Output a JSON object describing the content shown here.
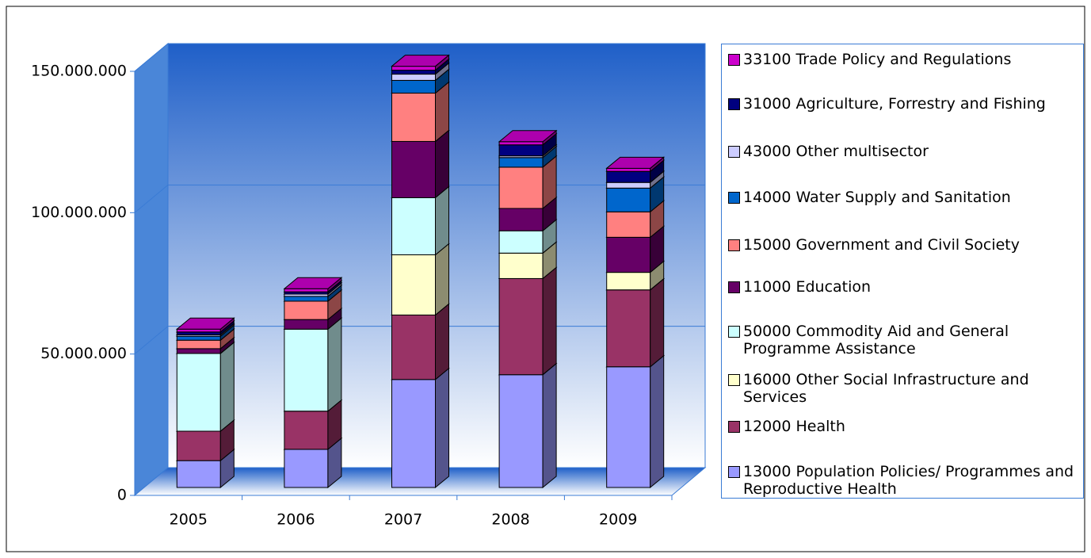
{
  "chart_data": {
    "type": "bar3d_stacked",
    "categories": [
      "2005",
      "2006",
      "2007",
      "2008",
      "2009"
    ],
    "series": [
      {
        "name": "13000 Population Policies/ Programmes and Reproductive Health",
        "color": "#9999ff",
        "values": [
          9500000,
          13500000,
          38200000,
          39900000,
          42700000
        ]
      },
      {
        "name": "12000 Health",
        "color": "#993366",
        "values": [
          10400000,
          13500000,
          22800000,
          34000000,
          27200000
        ]
      },
      {
        "name": "16000 Other Social Infrastructure and Services",
        "color": "#ffffcc",
        "values": [
          0,
          0,
          21300000,
          9000000,
          6200000
        ]
      },
      {
        "name": "50000 Commodity Aid and General Programme Assistance",
        "color": "#ccffff",
        "values": [
          27500000,
          29000000,
          20200000,
          7900000,
          0
        ]
      },
      {
        "name": "11000 Education",
        "color": "#660066",
        "values": [
          1700000,
          3400000,
          19900000,
          7900000,
          12400000
        ]
      },
      {
        "name": "15000 Government and Civil Society",
        "color": "#ff8080",
        "values": [
          3000000,
          6500000,
          17100000,
          14600000,
          9000000
        ]
      },
      {
        "name": "14000 Water Supply and Sanitation",
        "color": "#0066cc",
        "values": [
          1400000,
          1700000,
          4500000,
          3400000,
          8400000
        ]
      },
      {
        "name": "43000 Other multisector",
        "color": "#ccccff",
        "values": [
          500000,
          800000,
          2200000,
          600000,
          2000000
        ]
      },
      {
        "name": "31000 Agriculture, Forrestry and Fishing",
        "color": "#000080",
        "values": [
          1000000,
          800000,
          1400000,
          3900000,
          3900000
        ]
      },
      {
        "name": "33100 Trade Policy and Regulations",
        "color": "#cc00cc",
        "values": [
          1000000,
          1100000,
          1400000,
          1100000,
          1100000
        ]
      }
    ],
    "ylim": [
      0,
      150000000
    ],
    "yticks": [
      0,
      {
        "value": 50000000,
        "label": "50.000.000"
      },
      {
        "value": 100000000,
        "label": "100.000.000"
      },
      {
        "value": 150000000,
        "label": "150.000.000"
      }
    ],
    "grid": true
  }
}
